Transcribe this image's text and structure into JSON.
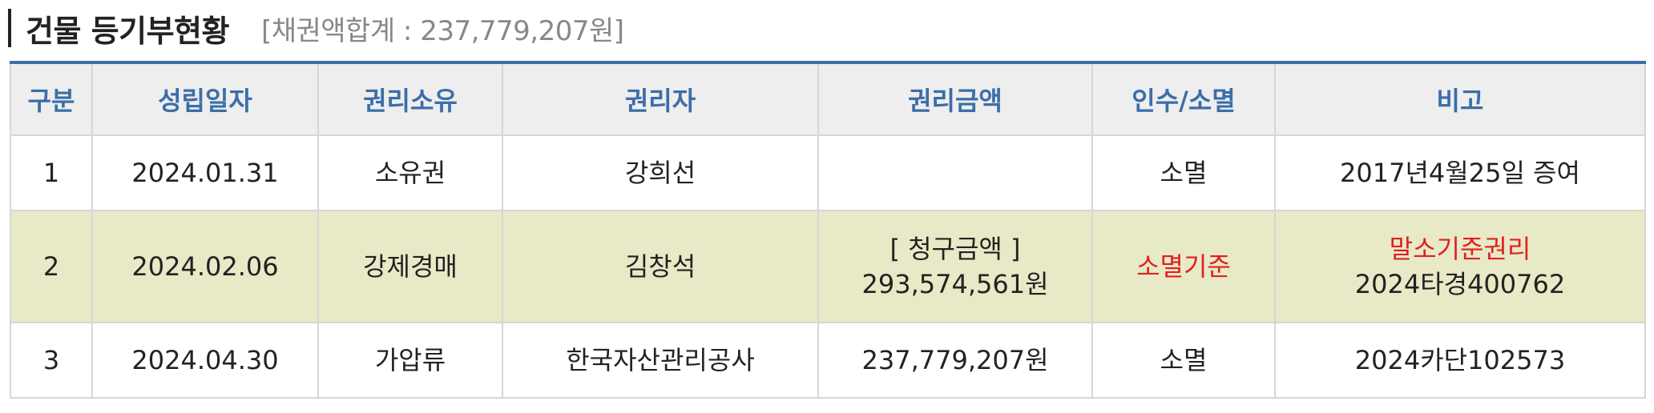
{
  "header": {
    "title": "건물 등기부현황",
    "sum_text": "[채권액합계 : 237,779,207원]"
  },
  "table": {
    "columns": [
      "구분",
      "성립일자",
      "권리소유",
      "권리자",
      "권리금액",
      "인수/소멸",
      "비고"
    ],
    "rows": [
      {
        "no": "1",
        "date": "2024.01.31",
        "right_type": "소유권",
        "holder": "강희선",
        "amount_line1": "",
        "amount_line2": "",
        "status": "소멸",
        "note_line1": "2017년4월25일 증여",
        "note_line2": ""
      },
      {
        "no": "2",
        "date": "2024.02.06",
        "right_type": "강제경매",
        "holder": "김창석",
        "amount_line1": "[ 청구금액 ]",
        "amount_line2": "293,574,561원",
        "status": "소멸기준",
        "note_line1": "말소기준권리",
        "note_line2": "2024타경400762"
      },
      {
        "no": "3",
        "date": "2024.04.30",
        "right_type": "가압류",
        "holder": "한국자산관리공사",
        "amount_line1": "237,779,207원",
        "amount_line2": "",
        "status": "소멸",
        "note_line1": "2024카단102573",
        "note_line2": ""
      }
    ]
  },
  "colors": {
    "header_text": "#3b6ea8",
    "highlight_row": "#e8e9c6",
    "emphasis_red": "#e02020"
  }
}
